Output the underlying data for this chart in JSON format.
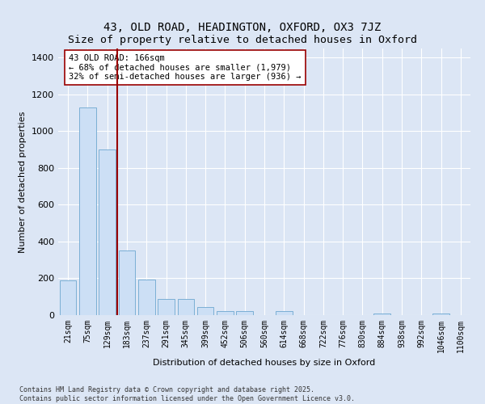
{
  "title": "43, OLD ROAD, HEADINGTON, OXFORD, OX3 7JZ",
  "subtitle": "Size of property relative to detached houses in Oxford",
  "xlabel": "Distribution of detached houses by size in Oxford",
  "ylabel": "Number of detached properties",
  "categories": [
    "21sqm",
    "75sqm",
    "129sqm",
    "183sqm",
    "237sqm",
    "291sqm",
    "345sqm",
    "399sqm",
    "452sqm",
    "506sqm",
    "560sqm",
    "614sqm",
    "668sqm",
    "722sqm",
    "776sqm",
    "830sqm",
    "884sqm",
    "938sqm",
    "992sqm",
    "1046sqm",
    "1100sqm"
  ],
  "values": [
    190,
    1130,
    900,
    350,
    195,
    90,
    90,
    45,
    20,
    20,
    0,
    20,
    0,
    0,
    0,
    0,
    10,
    0,
    0,
    10,
    0
  ],
  "bar_color": "#ccdff5",
  "bar_edge_color": "#7bafd4",
  "vline_x": 2.5,
  "vline_color": "#990000",
  "annotation_text": "43 OLD ROAD: 166sqm\n← 68% of detached houses are smaller (1,979)\n32% of semi-detached houses are larger (936) →",
  "annotation_box_color": "#ffffff",
  "annotation_box_edge": "#990000",
  "bg_color": "#dce6f5",
  "grid_color": "#ffffff",
  "footer_line1": "Contains HM Land Registry data © Crown copyright and database right 2025.",
  "footer_line2": "Contains public sector information licensed under the Open Government Licence v3.0.",
  "ylim": [
    0,
    1450
  ],
  "title_fontsize": 10,
  "tick_fontsize": 7,
  "ylabel_fontsize": 8,
  "xlabel_fontsize": 8,
  "ann_fontsize": 7.5
}
